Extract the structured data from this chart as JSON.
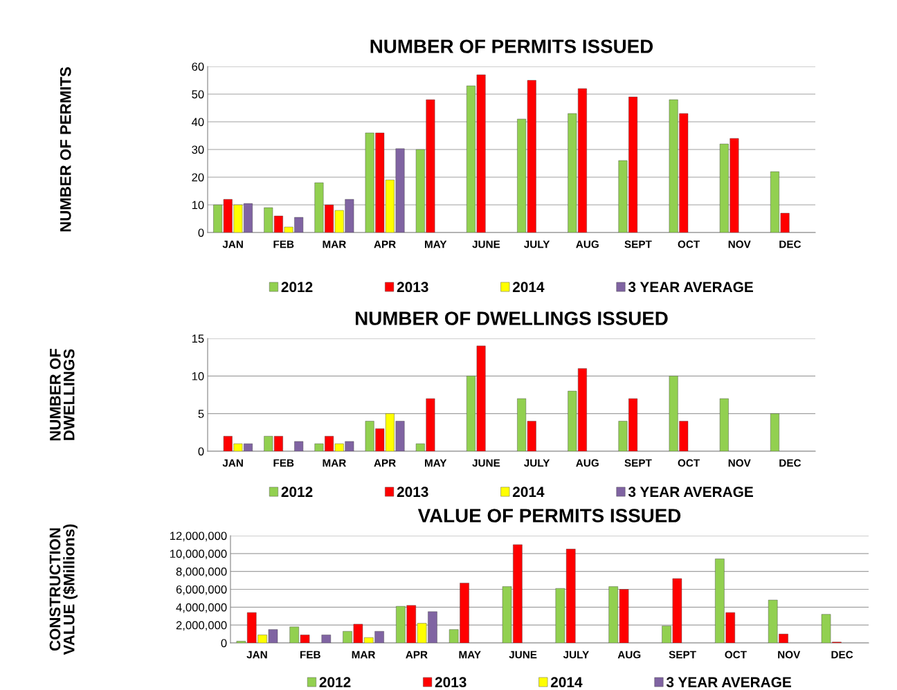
{
  "chart_data": [
    {
      "type": "bar",
      "title": "NUMBER OF PERMITS ISSUED",
      "ylabel": "NUMBER OF PERMITS",
      "categories": [
        "JAN",
        "FEB",
        "MAR",
        "APR",
        "MAY",
        "JUNE",
        "JULY",
        "AUG",
        "SEPT",
        "OCT",
        "NOV",
        "DEC"
      ],
      "series": [
        {
          "name": "2012",
          "color": "#92d050",
          "values": [
            10,
            9,
            18,
            36,
            30,
            53,
            41,
            43,
            26,
            48,
            32,
            22
          ]
        },
        {
          "name": "2013",
          "color": "#ff0000",
          "values": [
            12,
            6,
            10,
            36,
            48,
            57,
            55,
            52,
            49,
            43,
            34,
            7
          ]
        },
        {
          "name": "2014",
          "color": "#ffff00",
          "values": [
            10,
            2,
            8,
            19,
            null,
            null,
            null,
            null,
            null,
            null,
            null,
            null
          ]
        },
        {
          "name": "3 YEAR AVERAGE",
          "color": "#8064a2",
          "values": [
            10.5,
            5.5,
            12,
            30.3,
            null,
            null,
            null,
            null,
            null,
            null,
            null,
            null
          ]
        }
      ],
      "ylim": [
        0,
        60
      ],
      "yticks": [
        0,
        10,
        20,
        30,
        40,
        50,
        60
      ],
      "grid": "y",
      "legend": "bottom"
    },
    {
      "type": "bar",
      "title": "NUMBER OF DWELLINGS ISSUED",
      "ylabel": "NUMBER OF\nDWELLINGS",
      "categories": [
        "JAN",
        "FEB",
        "MAR",
        "APR",
        "MAY",
        "JUNE",
        "JULY",
        "AUG",
        "SEPT",
        "OCT",
        "NOV",
        "DEC"
      ],
      "series": [
        {
          "name": "2012",
          "color": "#92d050",
          "values": [
            null,
            2,
            1,
            4,
            1,
            10,
            7,
            8,
            4,
            10,
            7,
            5
          ]
        },
        {
          "name": "2013",
          "color": "#ff0000",
          "values": [
            2,
            2,
            2,
            3,
            7,
            14,
            4,
            11,
            7,
            4,
            null,
            null
          ]
        },
        {
          "name": "2014",
          "color": "#ffff00",
          "values": [
            1,
            null,
            1,
            5,
            null,
            null,
            null,
            null,
            null,
            null,
            null,
            null
          ]
        },
        {
          "name": "3 YEAR AVERAGE",
          "color": "#8064a2",
          "values": [
            1,
            1.3,
            1.3,
            4,
            null,
            null,
            null,
            null,
            null,
            null,
            null,
            null
          ]
        }
      ],
      "ylim": [
        0,
        15
      ],
      "yticks": [
        0,
        5,
        10,
        15
      ],
      "grid": "y",
      "legend": "bottom"
    },
    {
      "type": "bar",
      "title": "VALUE OF PERMITS ISSUED",
      "ylabel": "CONSTRUCTION\nVALUE ($Millions)",
      "categories": [
        "JAN",
        "FEB",
        "MAR",
        "APR",
        "MAY",
        "JUNE",
        "JULY",
        "AUG",
        "SEPT",
        "OCT",
        "NOV",
        "DEC"
      ],
      "series": [
        {
          "name": "2012",
          "color": "#92d050",
          "values": [
            200000,
            1800000,
            1300000,
            4100000,
            1500000,
            6300000,
            6100000,
            6300000,
            1900000,
            9400000,
            4800000,
            3200000
          ]
        },
        {
          "name": "2013",
          "color": "#ff0000",
          "values": [
            3400000,
            900000,
            2100000,
            4200000,
            6700000,
            11000000,
            10500000,
            6000000,
            7200000,
            3400000,
            1000000,
            100000
          ]
        },
        {
          "name": "2014",
          "color": "#ffff00",
          "values": [
            900000,
            null,
            600000,
            2200000,
            null,
            null,
            null,
            null,
            null,
            null,
            null,
            null
          ]
        },
        {
          "name": "3 YEAR AVERAGE",
          "color": "#8064a2",
          "values": [
            1500000,
            900000,
            1300000,
            3500000,
            null,
            null,
            null,
            null,
            null,
            null,
            null,
            null
          ]
        }
      ],
      "ylim": [
        0,
        12000000
      ],
      "yticks": [
        {
          "value": 0,
          "label": "0"
        },
        {
          "value": 2000000,
          "label": "2,000,000"
        },
        {
          "value": 4000000,
          "label": "4,000,000"
        },
        {
          "value": 6000000,
          "label": "6,000,000"
        },
        {
          "value": 8000000,
          "label": "8,000,000"
        },
        {
          "value": 10000000,
          "label": "10,000,000"
        },
        {
          "value": 12000000,
          "label": "12,000,000"
        }
      ],
      "grid": "y",
      "legend": "bottom"
    }
  ]
}
